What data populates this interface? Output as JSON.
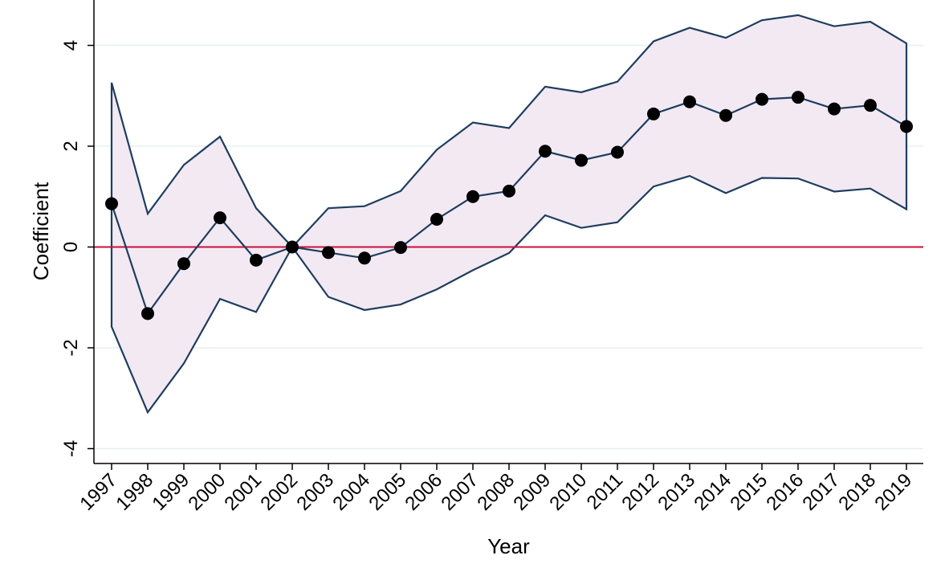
{
  "chart_data": {
    "type": "line",
    "title": "",
    "xlabel": "Year",
    "ylabel": "Coefficient",
    "x": [
      "1997",
      "1998",
      "1999",
      "2000",
      "2001",
      "2002",
      "2003",
      "2004",
      "2005",
      "2006",
      "2007",
      "2008",
      "2009",
      "2010",
      "2011",
      "2012",
      "2013",
      "2014",
      "2015",
      "2016",
      "2017",
      "2018",
      "2019"
    ],
    "series": [
      {
        "values": [
          0.86,
          -1.32,
          -0.33,
          0.58,
          -0.26,
          0.0,
          -0.11,
          -0.22,
          -0.01,
          0.55,
          1.0,
          1.11,
          1.9,
          1.72,
          1.88,
          2.64,
          2.88,
          2.61,
          2.93,
          2.97,
          2.74,
          2.81,
          2.39
        ],
        "upper": [
          3.26,
          0.66,
          1.63,
          2.19,
          0.77,
          0.0,
          0.77,
          0.81,
          1.11,
          1.93,
          2.47,
          2.36,
          3.18,
          3.07,
          3.28,
          4.08,
          4.35,
          4.15,
          4.5,
          4.6,
          4.38,
          4.47,
          4.04
        ],
        "lower": [
          -1.58,
          -3.28,
          -2.31,
          -1.03,
          -1.29,
          0.0,
          -0.99,
          -1.25,
          -1.14,
          -0.84,
          -0.46,
          -0.12,
          0.63,
          0.38,
          0.49,
          1.2,
          1.41,
          1.07,
          1.37,
          1.36,
          1.1,
          1.16,
          0.75
        ]
      }
    ],
    "reference_line_y": 0,
    "yticks": [
      -4,
      -2,
      0,
      2,
      4
    ],
    "ylim": [
      -4.3,
      4.8
    ],
    "xlim": [
      1996.5,
      1019.5
    ],
    "grid": true,
    "colors": {
      "band_fill": "#f2e9f3",
      "band_line": "#1f3d5f",
      "point_line": "#1f3d5f",
      "marker": "#000000",
      "reference_line": "#c8113a",
      "grid": "#e6efef"
    }
  }
}
